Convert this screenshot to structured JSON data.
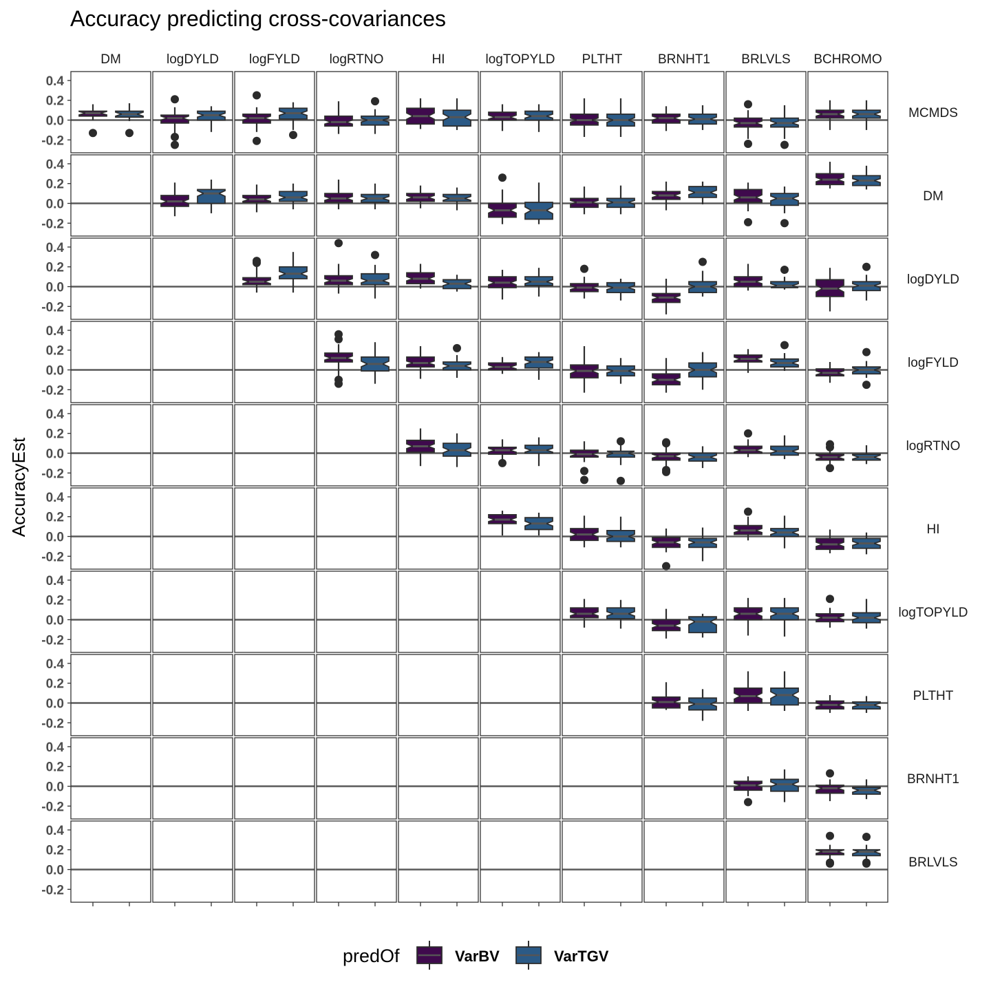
{
  "chart_data": {
    "type": "boxplot",
    "title": "Accuracy predicting cross-covariances",
    "ylabel": "AccuracyEst",
    "xlabel": "",
    "ylim": [
      -0.33,
      0.49
    ],
    "yticks": [
      -0.2,
      0.0,
      0.2,
      0.4
    ],
    "ytick_labels": [
      "-0.2",
      "0.0",
      "0.2",
      "0.4"
    ],
    "hline": 0.0,
    "notched": true,
    "col_facets": [
      "DM",
      "logDYLD",
      "logFYLD",
      "logRTNO",
      "HI",
      "logTOPYLD",
      "PLTHT",
      "BRNHT1",
      "BRLVLS",
      "BCHROMO"
    ],
    "row_facets": [
      "MCMDS",
      "DM",
      "logDYLD",
      "logFYLD",
      "logRTNO",
      "HI",
      "logTOPYLD",
      "PLTHT",
      "BRNHT1",
      "BRLVLS"
    ],
    "legend": {
      "title": "predOf",
      "position": "bottom",
      "entries": [
        {
          "name": "VarBV",
          "color": "#3f0a4d"
        },
        {
          "name": "VarTGV",
          "color": "#2b5a86"
        }
      ]
    },
    "series_order": [
      "VarBV",
      "VarTGV"
    ],
    "box_format": "[whisker_low, q1, median, q3, whisker_high, [outliers]]",
    "panels": [
      {
        "row": 0,
        "col": 0,
        "VarBV": [
          0.0,
          0.04,
          0.07,
          0.09,
          0.16,
          [
            -0.13
          ]
        ],
        "VarTGV": [
          -0.01,
          0.03,
          0.06,
          0.09,
          0.17,
          [
            -0.13
          ]
        ]
      },
      {
        "row": 0,
        "col": 1,
        "VarBV": [
          -0.15,
          -0.03,
          0.02,
          0.05,
          0.13,
          [
            0.21,
            -0.17,
            -0.25
          ]
        ],
        "VarTGV": [
          -0.12,
          0.0,
          0.05,
          0.09,
          0.14,
          []
        ]
      },
      {
        "row": 0,
        "col": 2,
        "VarBV": [
          -0.12,
          -0.03,
          0.02,
          0.06,
          0.13,
          [
            0.25,
            -0.21
          ]
        ],
        "VarTGV": [
          -0.1,
          0.01,
          0.07,
          0.12,
          0.18,
          [
            -0.15
          ]
        ]
      },
      {
        "row": 0,
        "col": 3,
        "VarBV": [
          -0.14,
          -0.06,
          -0.02,
          0.04,
          0.19,
          []
        ],
        "VarTGV": [
          -0.14,
          -0.05,
          0.0,
          0.04,
          0.11,
          [
            0.19
          ]
        ]
      },
      {
        "row": 0,
        "col": 4,
        "VarBV": [
          -0.09,
          -0.04,
          0.04,
          0.12,
          0.22,
          []
        ],
        "VarTGV": [
          -0.1,
          -0.06,
          0.03,
          0.1,
          0.22,
          []
        ]
      },
      {
        "row": 0,
        "col": 5,
        "VarBV": [
          -0.11,
          0.0,
          0.03,
          0.08,
          0.16,
          []
        ],
        "VarTGV": [
          -0.12,
          0.0,
          0.04,
          0.09,
          0.16,
          []
        ]
      },
      {
        "row": 0,
        "col": 6,
        "VarBV": [
          -0.17,
          -0.05,
          0.0,
          0.06,
          0.22,
          []
        ],
        "VarTGV": [
          -0.17,
          -0.06,
          0.0,
          0.06,
          0.22,
          []
        ]
      },
      {
        "row": 0,
        "col": 7,
        "VarBV": [
          -0.11,
          -0.03,
          0.02,
          0.06,
          0.14,
          []
        ],
        "VarTGV": [
          -0.1,
          -0.04,
          0.01,
          0.06,
          0.15,
          []
        ]
      },
      {
        "row": 0,
        "col": 8,
        "VarBV": [
          -0.19,
          -0.07,
          -0.03,
          0.02,
          0.1,
          [
            0.16,
            -0.24
          ]
        ],
        "VarTGV": [
          -0.19,
          -0.07,
          -0.03,
          0.02,
          0.15,
          [
            -0.25
          ]
        ]
      },
      {
        "row": 0,
        "col": 9,
        "VarBV": [
          -0.1,
          0.02,
          0.06,
          0.1,
          0.2,
          []
        ],
        "VarTGV": [
          -0.1,
          0.02,
          0.06,
          0.1,
          0.2,
          []
        ]
      },
      {
        "row": 1,
        "col": 1,
        "VarBV": [
          -0.13,
          -0.03,
          0.02,
          0.08,
          0.21,
          []
        ],
        "VarTGV": [
          -0.1,
          0.0,
          0.1,
          0.14,
          0.24,
          []
        ]
      },
      {
        "row": 1,
        "col": 2,
        "VarBV": [
          -0.09,
          0.01,
          0.04,
          0.08,
          0.19,
          []
        ],
        "VarTGV": [
          -0.06,
          0.02,
          0.06,
          0.12,
          0.2,
          []
        ]
      },
      {
        "row": 1,
        "col": 3,
        "VarBV": [
          -0.06,
          0.01,
          0.05,
          0.1,
          0.24,
          []
        ],
        "VarTGV": [
          -0.06,
          0.01,
          0.05,
          0.09,
          0.2,
          []
        ]
      },
      {
        "row": 1,
        "col": 4,
        "VarBV": [
          -0.05,
          0.02,
          0.06,
          0.1,
          0.18,
          []
        ],
        "VarTGV": [
          -0.07,
          0.02,
          0.05,
          0.09,
          0.16,
          []
        ]
      },
      {
        "row": 1,
        "col": 5,
        "VarBV": [
          -0.21,
          -0.14,
          -0.07,
          0.0,
          0.14,
          [
            0.26
          ]
        ],
        "VarTGV": [
          -0.21,
          -0.16,
          -0.07,
          0.01,
          0.21,
          []
        ]
      },
      {
        "row": 1,
        "col": 6,
        "VarBV": [
          -0.11,
          -0.04,
          0.01,
          0.05,
          0.17,
          []
        ],
        "VarTGV": [
          -0.11,
          -0.04,
          0.01,
          0.05,
          0.18,
          []
        ]
      },
      {
        "row": 1,
        "col": 7,
        "VarBV": [
          -0.07,
          0.04,
          0.08,
          0.12,
          0.22,
          []
        ],
        "VarTGV": [
          -0.01,
          0.06,
          0.11,
          0.17,
          0.22,
          []
        ]
      },
      {
        "row": 1,
        "col": 8,
        "VarBV": [
          -0.08,
          0.01,
          0.06,
          0.14,
          0.21,
          [
            -0.19
          ]
        ],
        "VarTGV": [
          -0.1,
          -0.02,
          0.05,
          0.1,
          0.17,
          [
            -0.2
          ]
        ]
      },
      {
        "row": 1,
        "col": 9,
        "VarBV": [
          0.15,
          0.19,
          0.24,
          0.3,
          0.42,
          []
        ],
        "VarTGV": [
          0.14,
          0.18,
          0.23,
          0.28,
          0.38,
          []
        ]
      },
      {
        "row": 2,
        "col": 2,
        "VarBV": [
          -0.06,
          0.02,
          0.05,
          0.09,
          0.2,
          [
            0.24,
            0.26
          ]
        ],
        "VarTGV": [
          -0.06,
          0.08,
          0.13,
          0.2,
          0.35,
          []
        ]
      },
      {
        "row": 2,
        "col": 3,
        "VarBV": [
          -0.07,
          0.02,
          0.06,
          0.11,
          0.23,
          [
            0.44
          ]
        ],
        "VarTGV": [
          -0.12,
          0.02,
          0.06,
          0.13,
          0.22,
          [
            0.32
          ]
        ]
      },
      {
        "row": 2,
        "col": 4,
        "VarBV": [
          -0.02,
          0.03,
          0.08,
          0.14,
          0.23,
          []
        ],
        "VarTGV": [
          -0.05,
          -0.02,
          0.03,
          0.07,
          0.12,
          []
        ]
      },
      {
        "row": 2,
        "col": 5,
        "VarBV": [
          -0.13,
          -0.01,
          0.04,
          0.1,
          0.17,
          []
        ],
        "VarTGV": [
          -0.1,
          0.01,
          0.05,
          0.1,
          0.19,
          []
        ]
      },
      {
        "row": 2,
        "col": 6,
        "VarBV": [
          -0.12,
          -0.05,
          -0.01,
          0.03,
          0.1,
          [
            0.18
          ]
        ],
        "VarTGV": [
          -0.14,
          -0.06,
          -0.01,
          0.04,
          0.08,
          []
        ]
      },
      {
        "row": 2,
        "col": 7,
        "VarBV": [
          -0.28,
          -0.16,
          -0.11,
          -0.07,
          0.08,
          []
        ],
        "VarTGV": [
          -0.1,
          -0.06,
          0.0,
          0.05,
          0.16,
          [
            0.25
          ]
        ]
      },
      {
        "row": 2,
        "col": 8,
        "VarBV": [
          -0.04,
          0.0,
          0.05,
          0.1,
          0.23,
          []
        ],
        "VarTGV": [
          -0.03,
          -0.01,
          0.01,
          0.05,
          0.1,
          [
            0.17
          ]
        ]
      },
      {
        "row": 2,
        "col": 9,
        "VarBV": [
          -0.25,
          -0.1,
          -0.02,
          0.07,
          0.19,
          []
        ],
        "VarTGV": [
          -0.14,
          -0.04,
          0.01,
          0.05,
          0.12,
          [
            0.2
          ]
        ]
      },
      {
        "row": 3,
        "col": 3,
        "VarBV": [
          -0.08,
          0.08,
          0.12,
          0.17,
          0.26,
          [
            0.31,
            0.36,
            -0.1,
            -0.14
          ]
        ],
        "VarTGV": [
          -0.14,
          -0.01,
          0.06,
          0.13,
          0.28,
          []
        ]
      },
      {
        "row": 3,
        "col": 4,
        "VarBV": [
          -0.09,
          0.03,
          0.07,
          0.13,
          0.24,
          []
        ],
        "VarTGV": [
          -0.08,
          0.0,
          0.04,
          0.08,
          0.15,
          [
            0.22
          ]
        ]
      },
      {
        "row": 3,
        "col": 5,
        "VarBV": [
          -0.04,
          0.0,
          0.03,
          0.07,
          0.13,
          []
        ],
        "VarTGV": [
          -0.1,
          0.02,
          0.08,
          0.13,
          0.18,
          []
        ]
      },
      {
        "row": 3,
        "col": 6,
        "VarBV": [
          -0.23,
          -0.08,
          -0.01,
          0.05,
          0.24,
          []
        ],
        "VarTGV": [
          -0.14,
          -0.06,
          -0.01,
          0.04,
          0.12,
          []
        ]
      },
      {
        "row": 3,
        "col": 7,
        "VarBV": [
          -0.23,
          -0.15,
          -0.1,
          -0.04,
          0.12,
          []
        ],
        "VarTGV": [
          -0.2,
          -0.07,
          0.0,
          0.07,
          0.18,
          []
        ]
      },
      {
        "row": 3,
        "col": 8,
        "VarBV": [
          -0.03,
          0.08,
          0.11,
          0.15,
          0.21,
          []
        ],
        "VarTGV": [
          -0.01,
          0.03,
          0.07,
          0.11,
          0.17,
          [
            0.25
          ]
        ]
      },
      {
        "row": 3,
        "col": 9,
        "VarBV": [
          -0.13,
          -0.06,
          -0.03,
          0.01,
          0.08,
          []
        ],
        "VarTGV": [
          -0.08,
          -0.04,
          0.0,
          0.03,
          0.09,
          [
            0.18,
            -0.15
          ]
        ]
      },
      {
        "row": 4,
        "col": 4,
        "VarBV": [
          -0.13,
          0.01,
          0.07,
          0.13,
          0.25,
          []
        ],
        "VarTGV": [
          -0.14,
          -0.03,
          0.03,
          0.1,
          0.2,
          []
        ]
      },
      {
        "row": 4,
        "col": 5,
        "VarBV": [
          -0.06,
          -0.01,
          0.03,
          0.06,
          0.14,
          [
            -0.1
          ]
        ],
        "VarTGV": [
          -0.13,
          0.0,
          0.03,
          0.08,
          0.16,
          []
        ]
      },
      {
        "row": 4,
        "col": 6,
        "VarBV": [
          -0.09,
          -0.04,
          -0.01,
          0.03,
          0.12,
          [
            -0.18,
            -0.27
          ]
        ],
        "VarTGV": [
          -0.12,
          -0.04,
          0.0,
          0.02,
          0.1,
          [
            0.12,
            -0.28
          ]
        ]
      },
      {
        "row": 4,
        "col": 7,
        "VarBV": [
          -0.14,
          -0.07,
          -0.03,
          0.0,
          0.08,
          [
            0.1,
            0.11,
            -0.17,
            -0.19
          ]
        ],
        "VarTGV": [
          -0.15,
          -0.08,
          -0.04,
          0.0,
          0.07,
          []
        ]
      },
      {
        "row": 4,
        "col": 8,
        "VarBV": [
          -0.04,
          0.0,
          0.03,
          0.07,
          0.14,
          [
            0.2
          ]
        ],
        "VarTGV": [
          -0.06,
          -0.02,
          0.02,
          0.07,
          0.18,
          []
        ]
      },
      {
        "row": 4,
        "col": 9,
        "VarBV": [
          -0.11,
          -0.07,
          -0.04,
          -0.01,
          0.04,
          [
            0.06,
            0.09,
            -0.15
          ]
        ],
        "VarTGV": [
          -0.11,
          -0.07,
          -0.04,
          -0.01,
          0.08,
          []
        ]
      },
      {
        "row": 5,
        "col": 5,
        "VarBV": [
          0.01,
          0.13,
          0.17,
          0.22,
          0.26,
          []
        ],
        "VarTGV": [
          0.01,
          0.07,
          0.13,
          0.19,
          0.24,
          []
        ]
      },
      {
        "row": 5,
        "col": 6,
        "VarBV": [
          -0.11,
          -0.04,
          0.02,
          0.08,
          0.21,
          []
        ],
        "VarTGV": [
          -0.11,
          -0.05,
          0.0,
          0.06,
          0.2,
          []
        ]
      },
      {
        "row": 5,
        "col": 7,
        "VarBV": [
          -0.16,
          -0.11,
          -0.06,
          -0.01,
          0.08,
          [
            -0.3
          ]
        ],
        "VarTGV": [
          -0.25,
          -0.11,
          -0.06,
          -0.02,
          0.09,
          []
        ]
      },
      {
        "row": 5,
        "col": 8,
        "VarBV": [
          -0.04,
          0.02,
          0.06,
          0.11,
          0.2,
          [
            0.25
          ]
        ],
        "VarTGV": [
          -0.12,
          0.0,
          0.04,
          0.08,
          0.21,
          []
        ]
      },
      {
        "row": 5,
        "col": 9,
        "VarBV": [
          -0.17,
          -0.13,
          -0.08,
          -0.02,
          0.07,
          []
        ],
        "VarTGV": [
          -0.18,
          -0.12,
          -0.07,
          -0.02,
          0.04,
          []
        ]
      },
      {
        "row": 6,
        "col": 6,
        "VarBV": [
          -0.08,
          0.02,
          0.06,
          0.12,
          0.21,
          []
        ],
        "VarTGV": [
          -0.09,
          0.01,
          0.06,
          0.12,
          0.2,
          []
        ]
      },
      {
        "row": 6,
        "col": 7,
        "VarBV": [
          -0.19,
          -0.11,
          -0.06,
          0.0,
          0.11,
          []
        ],
        "VarTGV": [
          -0.18,
          -0.13,
          -0.02,
          0.03,
          0.06,
          []
        ]
      },
      {
        "row": 6,
        "col": 8,
        "VarBV": [
          -0.16,
          0.0,
          0.06,
          0.12,
          0.22,
          []
        ],
        "VarTGV": [
          -0.17,
          0.0,
          0.06,
          0.12,
          0.22,
          []
        ]
      },
      {
        "row": 6,
        "col": 9,
        "VarBV": [
          -0.08,
          -0.02,
          0.02,
          0.06,
          0.12,
          [
            0.21
          ]
        ],
        "VarTGV": [
          -0.09,
          -0.03,
          0.02,
          0.07,
          0.21,
          []
        ]
      },
      {
        "row": 7,
        "col": 7,
        "VarBV": [
          -0.07,
          -0.05,
          0.01,
          0.06,
          0.21,
          []
        ],
        "VarTGV": [
          -0.18,
          -0.07,
          -0.01,
          0.05,
          0.14,
          []
        ]
      },
      {
        "row": 7,
        "col": 8,
        "VarBV": [
          -0.08,
          0.0,
          0.07,
          0.15,
          0.32,
          []
        ],
        "VarTGV": [
          -0.08,
          -0.02,
          0.08,
          0.15,
          0.32,
          []
        ]
      },
      {
        "row": 7,
        "col": 9,
        "VarBV": [
          -0.1,
          -0.06,
          -0.02,
          0.02,
          0.08,
          []
        ],
        "VarTGV": [
          -0.1,
          -0.06,
          -0.02,
          0.01,
          0.07,
          []
        ]
      },
      {
        "row": 8,
        "col": 8,
        "VarBV": [
          -0.1,
          -0.04,
          0.01,
          0.05,
          0.1,
          [
            -0.16
          ]
        ],
        "VarTGV": [
          -0.16,
          -0.05,
          0.02,
          0.07,
          0.17,
          []
        ]
      },
      {
        "row": 8,
        "col": 9,
        "VarBV": [
          -0.15,
          -0.07,
          -0.02,
          0.01,
          0.07,
          [
            0.13
          ]
        ],
        "VarTGV": [
          -0.13,
          -0.08,
          -0.04,
          -0.01,
          0.07,
          []
        ]
      },
      {
        "row": 9,
        "col": 9,
        "VarBV": [
          0.09,
          0.15,
          0.18,
          0.2,
          0.25,
          [
            0.34,
            0.07,
            0.06
          ]
        ],
        "VarTGV": [
          0.09,
          0.14,
          0.18,
          0.2,
          0.25,
          [
            0.33,
            0.07,
            0.06
          ]
        ]
      }
    ]
  }
}
